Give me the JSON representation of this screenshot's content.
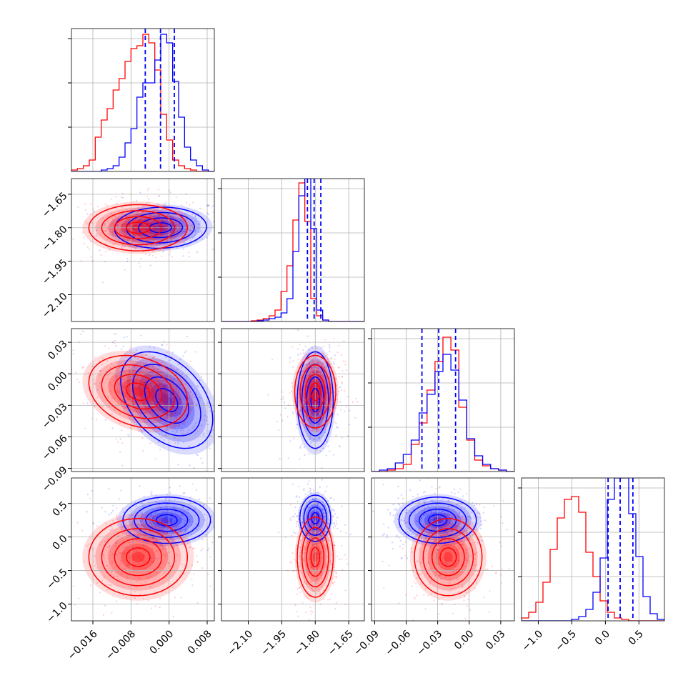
{
  "chart_data": {
    "type": "corner",
    "grid": true,
    "series": [
      {
        "color": "#0000ff"
      },
      {
        "color": "#ff0000"
      }
    ],
    "parameters": [
      {
        "range": [
          -0.0205,
          0.0095
        ],
        "ticks": [
          "−0.016",
          "−0.008",
          "0.000",
          "0.008"
        ],
        "tick_values": [
          -0.016,
          -0.008,
          0.0,
          0.008
        ],
        "blue_quantile_lines": [
          -0.005,
          -0.0018,
          0.0011
        ],
        "hist": {
          "blue": [
            0,
            0,
            0,
            0,
            0,
            0.01,
            0.02,
            0.04,
            0.1,
            0.2,
            0.3,
            0.52,
            0.62,
            0.62,
            0.78,
            0.96,
            0.9,
            0.63,
            0.38,
            0.17,
            0.08,
            0.04,
            0.01,
            0
          ],
          "red": [
            0.01,
            0.02,
            0.04,
            0.08,
            0.24,
            0.36,
            0.44,
            0.57,
            0.65,
            0.77,
            0.86,
            0.88,
            0.96,
            0.9,
            0.71,
            0.4,
            0.22,
            0.08,
            0.04,
            0.02,
            0.01,
            0,
            0,
            0
          ]
        }
      },
      {
        "range": [
          -2.22,
          -1.58
        ],
        "ticks": [
          "−2.10",
          "−1.95",
          "−1.80",
          "−1.65"
        ],
        "tick_values": [
          -2.1,
          -1.95,
          -1.8,
          -1.65
        ],
        "blue_quantile_lines": [
          -1.835,
          -1.805,
          -1.775
        ],
        "hist": {
          "blue": [
            0,
            0,
            0,
            0,
            0,
            0,
            0.005,
            0.01,
            0.02,
            0.03,
            0.06,
            0.16,
            0.49,
            0.88,
            1.0,
            0.65,
            0.08,
            0.01,
            0,
            0,
            0,
            0,
            0,
            0
          ],
          "red": [
            0,
            0,
            0,
            0,
            0,
            0.005,
            0.01,
            0.02,
            0.04,
            0.08,
            0.21,
            0.39,
            0.71,
            0.97,
            0.7,
            0.16,
            0.04,
            0.01,
            0,
            0,
            0,
            0,
            0,
            0
          ]
        }
      },
      {
        "range": [
          -0.093,
          0.043
        ],
        "ticks": [
          "−0.09",
          "−0.06",
          "−0.03",
          "0.00",
          "0.03"
        ],
        "tick_values": [
          -0.09,
          -0.06,
          -0.03,
          0.0,
          0.03
        ],
        "blue_quantile_lines": [
          -0.045,
          -0.029,
          -0.013
        ],
        "hist": {
          "blue": [
            0,
            0.01,
            0.02,
            0.06,
            0.12,
            0.22,
            0.41,
            0.54,
            0.7,
            0.82,
            0.71,
            0.5,
            0.23,
            0.11,
            0.05,
            0.02,
            0.01,
            0
          ],
          "red": [
            0,
            0,
            0.01,
            0.02,
            0.05,
            0.19,
            0.34,
            0.57,
            0.77,
            0.94,
            0.85,
            0.45,
            0.22,
            0.08,
            0.04,
            0.02,
            0.01,
            0
          ]
        }
      },
      {
        "range": [
          -1.25,
          0.88
        ],
        "ticks": [
          "−1.0",
          "−0.5",
          "0.0",
          "0.5"
        ],
        "tick_values": [
          -1.0,
          -0.5,
          0.0,
          0.5
        ],
        "blue_quantile_lines": [
          0.04,
          0.22,
          0.41
        ],
        "hist": {
          "blue": [
            0,
            0,
            0,
            0,
            0,
            0,
            0,
            0.01,
            0.03,
            0.08,
            0.2,
            0.44,
            0.85,
            1.0,
            1.0,
            0.75,
            0.45,
            0.17,
            0.05,
            0.01
          ],
          "red": [
            0.02,
            0.06,
            0.13,
            0.27,
            0.5,
            0.72,
            0.85,
            0.87,
            0.76,
            0.48,
            0.31,
            0.14,
            0.06,
            0.02,
            0.01,
            0,
            0,
            0,
            0,
            0
          ]
        }
      }
    ],
    "pairs": [
      {
        "row": 1,
        "col": 0,
        "blue": {
          "mean": [
            -0.0018,
            -1.8
          ],
          "sd": [
            0.0042,
            0.04
          ],
          "rho": 0.05
        },
        "red": {
          "mean": [
            -0.0065,
            -1.8
          ],
          "sd": [
            0.0045,
            0.045
          ],
          "rho": 0.0
        }
      },
      {
        "row": 2,
        "col": 0,
        "blue": {
          "mean": [
            -0.0005,
            -0.025
          ],
          "sd": [
            0.0042,
            0.02
          ],
          "rho": -0.4
        },
        "red": {
          "mean": [
            -0.0065,
            -0.017
          ],
          "sd": [
            0.0045,
            0.015
          ],
          "rho": -0.25
        }
      },
      {
        "row": 2,
        "col": 1,
        "blue": {
          "mean": [
            -1.8,
            -0.025
          ],
          "sd": [
            0.035,
            0.02
          ],
          "rho": 0.0
        },
        "red": {
          "mean": [
            -1.8,
            -0.017
          ],
          "sd": [
            0.04,
            0.015
          ],
          "rho": 0.0
        }
      },
      {
        "row": 3,
        "col": 0,
        "blue": {
          "mean": [
            -0.0005,
            0.25
          ],
          "sd": [
            0.004,
            0.15
          ],
          "rho": 0.0
        },
        "red": {
          "mean": [
            -0.0065,
            -0.3
          ],
          "sd": [
            0.0045,
            0.25
          ],
          "rho": 0.0
        }
      },
      {
        "row": 3,
        "col": 1,
        "blue": {
          "mean": [
            -1.8,
            0.28
          ],
          "sd": [
            0.03,
            0.15
          ],
          "rho": 0.0
        },
        "red": {
          "mean": [
            -1.8,
            -0.3
          ],
          "sd": [
            0.035,
            0.26
          ],
          "rho": 0.0
        }
      },
      {
        "row": 3,
        "col": 2,
        "blue": {
          "mean": [
            -0.03,
            0.25
          ],
          "sd": [
            0.016,
            0.15
          ],
          "rho": 0.0
        },
        "red": {
          "mean": [
            -0.02,
            -0.3
          ],
          "sd": [
            0.014,
            0.25
          ],
          "rho": 0.0
        }
      }
    ]
  }
}
